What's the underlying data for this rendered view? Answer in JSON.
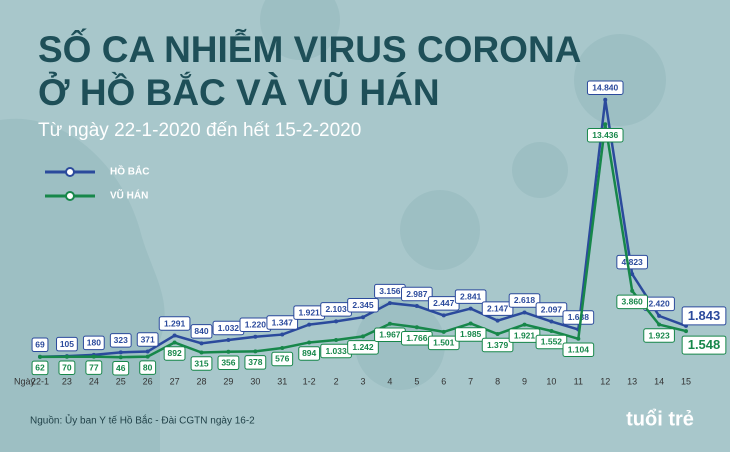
{
  "chart_data": {
    "type": "line",
    "title": [
      "SỐ CA NHIỄM VIRUS CORONA",
      "Ở HỒ BẮC VÀ VŨ HÁN"
    ],
    "subtitle": "Từ ngày 22-1-2020 đến hết 15-2-2020",
    "x_label": "Ngày",
    "categories": [
      "22-1",
      "23",
      "24",
      "25",
      "26",
      "27",
      "28",
      "29",
      "30",
      "31",
      "1-2",
      "2",
      "3",
      "4",
      "5",
      "6",
      "7",
      "8",
      "9",
      "10",
      "11",
      "12",
      "13",
      "14",
      "15"
    ],
    "ylim": [
      0,
      15000
    ],
    "series": [
      {
        "name": "HỒ BẮC",
        "color": "#2b4a9c",
        "values": [
          69,
          105,
          180,
          323,
          371,
          1291,
          840,
          1032,
          1220,
          1347,
          1921,
          2103,
          2345,
          3156,
          2987,
          2447,
          2841,
          2147,
          2618,
          2097,
          1638,
          14840,
          4823,
          2420,
          1843
        ],
        "value_labels": [
          "69",
          "105",
          "180",
          "323",
          "371",
          "1.291",
          "840",
          "1.032",
          "1.220",
          "1.347",
          "1.921",
          "2.103",
          "2.345",
          "3.156",
          "2.987",
          "2.447",
          "2.841",
          "2.147",
          "2.618",
          "2.097",
          "1.638",
          "14.840",
          "4.823",
          "2.420",
          "1.843"
        ]
      },
      {
        "name": "VŨ HÁN",
        "color": "#17874a",
        "values": [
          62,
          70,
          77,
          46,
          80,
          892,
          315,
          356,
          378,
          576,
          894,
          1033,
          1242,
          1967,
          1766,
          1501,
          1985,
          1379,
          1921,
          1552,
          1104,
          13436,
          3860,
          1923,
          1548
        ],
        "value_labels": [
          "62",
          "70",
          "77",
          "46",
          "80",
          "892",
          "315",
          "356",
          "378",
          "576",
          "894",
          "1.033",
          "1.242",
          "1.967",
          "1.766",
          "1.501",
          "1.985",
          "1.379",
          "1.921",
          "1.552",
          "1.104",
          "13.436",
          "3.860",
          "1.923",
          "1.548"
        ]
      }
    ],
    "source": "Nguồn: Ủy ban Y tế Hồ Bắc - Đài CGTN ngày 16-2",
    "logo": "tuổi trẻ"
  }
}
